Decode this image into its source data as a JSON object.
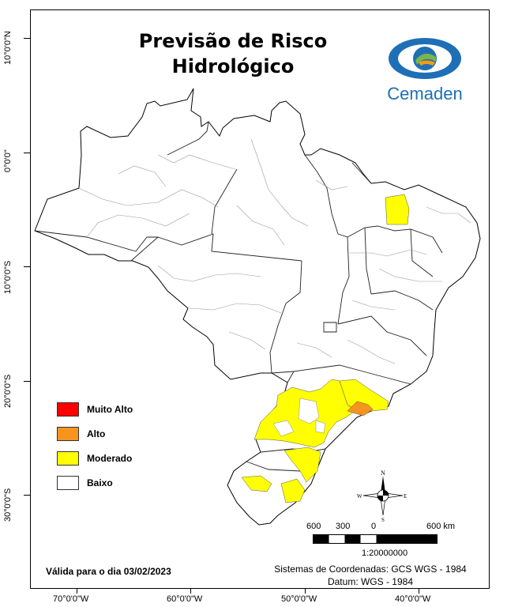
{
  "title": {
    "line1": "Previsão de Risco",
    "line2": "Hidrológico"
  },
  "logo": {
    "text": "Cemaden",
    "colors": {
      "blue": "#1f6fb6",
      "green": "#7ab648",
      "orange": "#f39c12"
    }
  },
  "latitude_labels": [
    "10°0'0\"N",
    "0°0'0\"",
    "10°0'0\"S",
    "20°0'0\"S",
    "30°0'0\"S"
  ],
  "longitude_labels": [
    "70°0'0\"W",
    "60°0'0\"W",
    "50°0'0\"W",
    "40°0'0\"W"
  ],
  "legend": [
    {
      "label": "Muito Alto",
      "color": "#ff0000"
    },
    {
      "label": "Alto",
      "color": "#f7941d"
    },
    {
      "label": "Moderado",
      "color": "#ffff00"
    },
    {
      "label": "Baixo",
      "color": "#ffffff"
    }
  ],
  "validity": "Válida para o dia 03/02/2023",
  "coordinate_system": {
    "line1": "Sistemas de Coordenadas: GCS WGS - 1984",
    "line2": "Datum: WGS - 1984"
  },
  "scale": {
    "labels": [
      "600",
      "300",
      "0",
      "600 km"
    ],
    "ratio": "1:20000000"
  },
  "compass": {
    "n": "N",
    "s": "S",
    "e": "E",
    "w": "W"
  }
}
